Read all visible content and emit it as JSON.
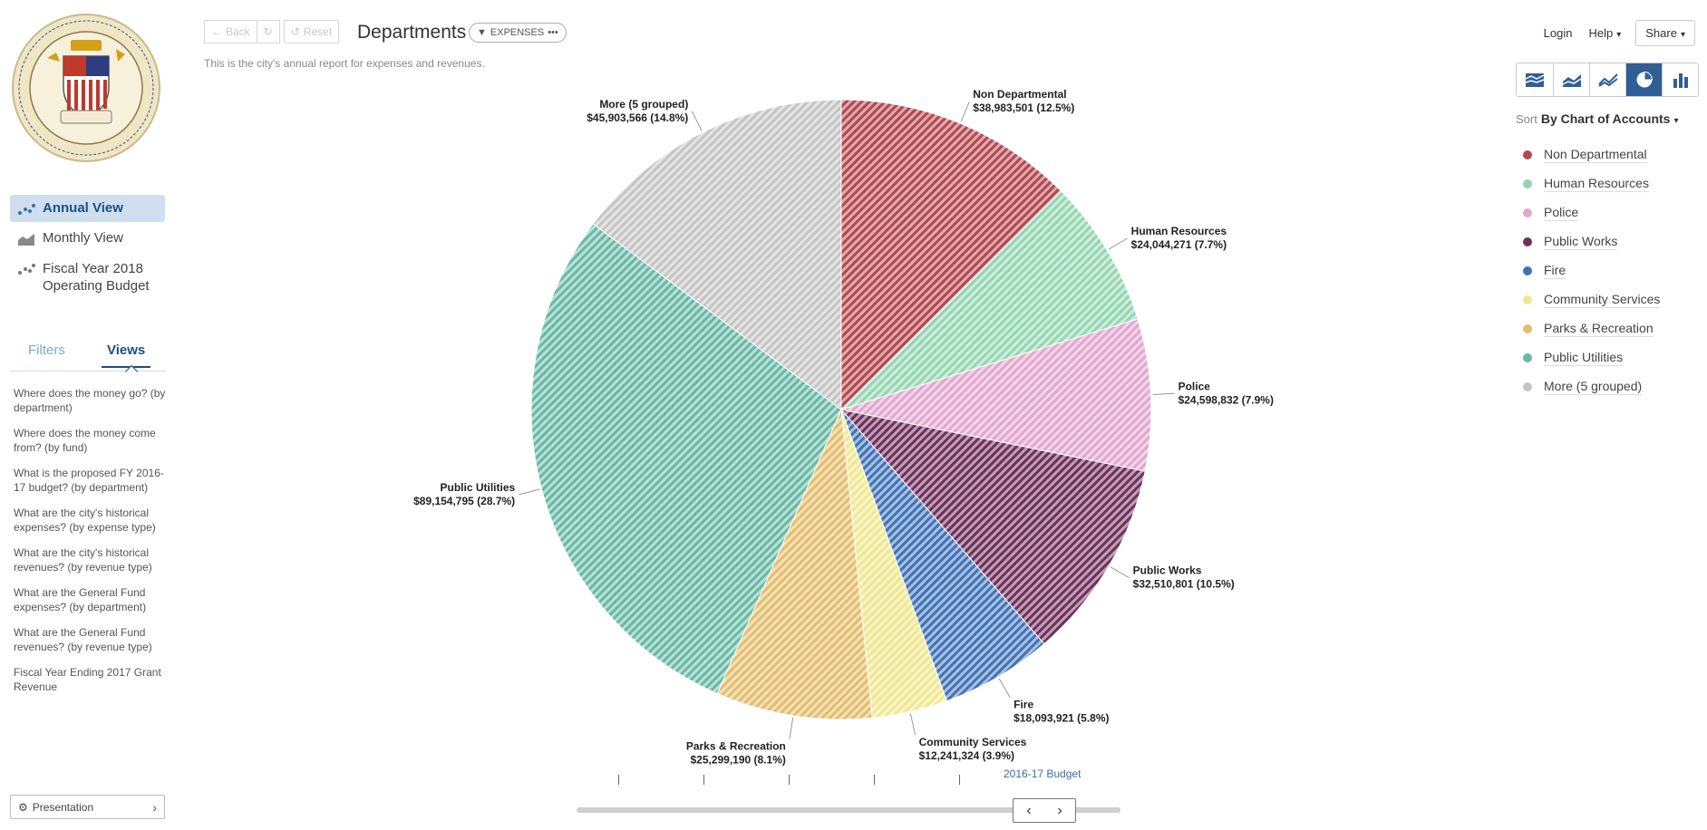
{
  "sidebar": {
    "views": [
      {
        "label": "Annual View",
        "icon": "scatter-dots-icon",
        "active": true
      },
      {
        "label": "Monthly View",
        "icon": "area-chart-icon",
        "active": false
      },
      {
        "label": "Fiscal Year 2018 Operating Budget",
        "icon": "scatter-dots-icon",
        "active": false
      }
    ],
    "tabs": {
      "filters": "Filters",
      "views": "Views"
    },
    "saved_views": [
      "Where does the money go? (by department)",
      "Where does the money come from? (by fund)",
      "What is the proposed FY 2016-17 budget? (by department)",
      "What are the city's historical expenses? (by expense type)",
      "What are the city's historical revenues? (by revenue type)",
      "What are the General Fund expenses? (by department)",
      "What are the General Fund revenues? (by revenue type)",
      "Fiscal Year Ending 2017 Grant Revenue"
    ],
    "presentation_label": "Presentation"
  },
  "header": {
    "back_label": "Back",
    "reset_label": "Reset",
    "title": "Departments",
    "filter_pill": "EXPENSES",
    "subtitle": "This is the city's annual report for expenses and revenues.",
    "login": "Login",
    "help": "Help",
    "share": "Share"
  },
  "sort": {
    "label": "Sort",
    "value": "By Chart of Accounts"
  },
  "colors": {
    "Non Departmental": "#b3474f",
    "Human Resources": "#93d6b1",
    "Police": "#e3a6cf",
    "Public Works": "#6e2f5b",
    "Fire": "#3f72b6",
    "Community Services": "#efe88e",
    "Parks & Recreation": "#e4bd6b",
    "Public Utilities": "#67b9a4",
    "More (5 grouped)": "#c4c4c4",
    "active_chart_button": "#2f5f95"
  },
  "chart_data": {
    "type": "pie",
    "title": "",
    "slices": [
      {
        "name": "Non Departmental",
        "value": 38983501,
        "label": "$38,983,501 (12.5%)"
      },
      {
        "name": "Human Resources",
        "value": 24044271,
        "label": "$24,044,271 (7.7%)"
      },
      {
        "name": "Police",
        "value": 24598832,
        "label": "$24,598,832 (7.9%)"
      },
      {
        "name": "Public Works",
        "value": 32510801,
        "label": "$32,510,801 (10.5%)"
      },
      {
        "name": "Fire",
        "value": 18093921,
        "label": "$18,093,921 (5.8%)"
      },
      {
        "name": "Community Services",
        "value": 12241324,
        "label": "$12,241,324 (3.9%)"
      },
      {
        "name": "Parks & Recreation",
        "value": 25299190,
        "label": "$25,299,190 (8.1%)"
      },
      {
        "name": "Public Utilities",
        "value": 89154795,
        "label": "$89,154,795 (28.7%)"
      },
      {
        "name": "More (5 grouped)",
        "value": 45903566,
        "label": "$45,903,566 (14.8%)"
      }
    ]
  },
  "timeline": {
    "selected_year": "2016-17 Budget"
  }
}
